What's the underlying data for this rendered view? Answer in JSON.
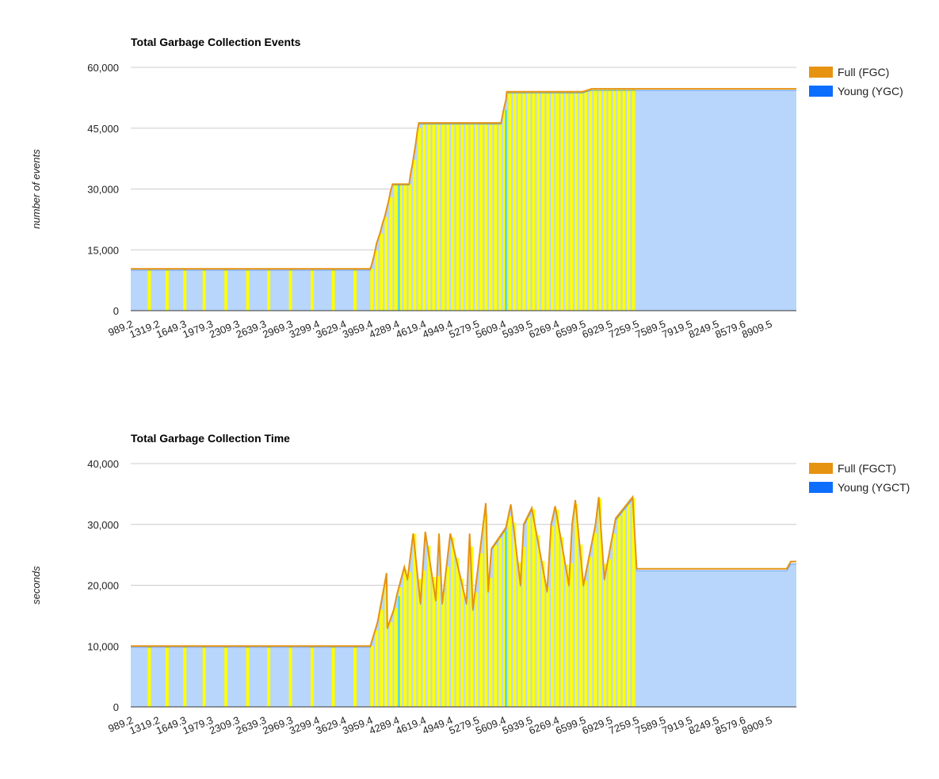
{
  "chart_data": [
    {
      "type": "area",
      "title": "Total Garbage Collection Events",
      "ylabel": "number of events",
      "xlabel": "",
      "ylim": [
        0,
        60000
      ],
      "yticks": [
        "0",
        "15,000",
        "30,000",
        "45,000",
        "60,000"
      ],
      "ytick_values": [
        0,
        15000,
        30000,
        45000,
        60000
      ],
      "xticks": [
        "989.2",
        "1319.2",
        "1649.3",
        "1979.3",
        "2309.3",
        "2639.3",
        "2969.3",
        "3299.4",
        "3629.4",
        "3959.4",
        "4289.4",
        "4619.4",
        "4949.4",
        "5279.5",
        "5609.4",
        "5939.5",
        "6269.4",
        "6599.5",
        "6929.5",
        "7259.5",
        "7589.5",
        "7919.5",
        "8249.5",
        "8579.6",
        "8909.5"
      ],
      "xlim": [
        989.2,
        9239.5
      ],
      "legend_position": "right",
      "grid": true,
      "colors": {
        "full": "#e69312",
        "young": "#0d6efd",
        "fill": "#b8d6fb",
        "highlight": "#ffff00",
        "cyan": "#33dddd"
      },
      "series": [
        {
          "name": "Full (FGC)",
          "x": [
            989.2,
            3959.4,
            3985,
            4010,
            4035,
            4060,
            4085,
            4110,
            4135,
            4160,
            4185,
            4210,
            4235,
            4260,
            4289.4,
            4400,
            4440,
            4460,
            4480,
            4500,
            4520,
            4540,
            4560,
            4580,
            5580,
            5610,
            5640,
            5650,
            5700,
            6590,
            6640,
            6700,
            6800,
            7259.5,
            9239.5
          ],
          "y": [
            10300,
            10300,
            12000,
            14000,
            16500,
            18000,
            19500,
            21500,
            23000,
            25000,
            27000,
            29500,
            31200,
            31200,
            31200,
            31200,
            31200,
            34000,
            36000,
            38500,
            41000,
            44000,
            46300,
            46300,
            46300,
            49500,
            52000,
            54000,
            54000,
            54000,
            54300,
            54700,
            54700,
            54700,
            54700
          ]
        },
        {
          "name": "Young (YGC)",
          "x": [
            989.2,
            3959.4,
            3985,
            4010,
            4035,
            4060,
            4085,
            4110,
            4135,
            4160,
            4185,
            4210,
            4235,
            4260,
            4289.4,
            4400,
            4440,
            4460,
            4480,
            4500,
            4520,
            4540,
            4560,
            4580,
            5580,
            5610,
            5640,
            5650,
            5700,
            6590,
            6640,
            6700,
            6800,
            7259.5,
            9239.5
          ],
          "y": [
            10000,
            10000,
            11800,
            13800,
            16300,
            17800,
            19300,
            21300,
            22800,
            24800,
            26800,
            29300,
            31000,
            31000,
            31000,
            31000,
            31000,
            33800,
            35800,
            38300,
            40800,
            43800,
            46000,
            46000,
            46000,
            49200,
            51700,
            53700,
            53700,
            53700,
            54000,
            54300,
            54300,
            54300,
            54300
          ]
        }
      ]
    },
    {
      "type": "area",
      "title": "Total Garbage Collection Time",
      "ylabel": "seconds",
      "xlabel": "",
      "ylim": [
        0,
        40000
      ],
      "yticks": [
        "0",
        "10,000",
        "20,000",
        "30,000",
        "40,000"
      ],
      "ytick_values": [
        0,
        10000,
        20000,
        30000,
        40000
      ],
      "xticks": [
        "989.2",
        "1319.2",
        "1649.3",
        "1979.3",
        "2309.3",
        "2639.3",
        "2969.3",
        "3299.4",
        "3629.4",
        "3959.4",
        "4289.4",
        "4619.4",
        "4949.4",
        "5279.5",
        "5609.4",
        "5939.5",
        "6269.4",
        "6599.5",
        "6929.5",
        "7259.5",
        "7589.5",
        "7919.5",
        "8249.5",
        "8579.6",
        "8909.5"
      ],
      "xlim": [
        989.2,
        9239.5
      ],
      "legend_position": "right",
      "grid": true,
      "colors": {
        "full": "#e69312",
        "young": "#0d6efd",
        "fill": "#b8d6fb",
        "highlight": "#ffff00",
        "cyan": "#33dddd"
      },
      "series": [
        {
          "name": "Full (FGCT)",
          "x": [
            989.2,
            3959.4,
            4050,
            4160,
            4170,
            4250,
            4289.4,
            4380,
            4420,
            4490,
            4580,
            4640,
            4770,
            4810,
            4850,
            4950,
            5150,
            5190,
            5230,
            5390,
            5420,
            5460,
            5640,
            5700,
            5820,
            5860,
            5960,
            6150,
            6200,
            6250,
            6420,
            6460,
            6500,
            6600,
            6750,
            6790,
            6860,
            7000,
            7210,
            7260,
            7259.5,
            9120,
            9170,
            9239.5
          ],
          "y": [
            10000,
            10000,
            14000,
            22000,
            13000,
            16000,
            18500,
            23000,
            21000,
            28500,
            17000,
            28800,
            17500,
            28500,
            17000,
            28500,
            17000,
            28500,
            16000,
            33500,
            19000,
            26000,
            29500,
            33300,
            20000,
            30000,
            32700,
            19000,
            30000,
            33000,
            20000,
            30000,
            34000,
            20000,
            30000,
            34500,
            21000,
            31000,
            34500,
            22700,
            22700,
            22700,
            23900,
            23900
          ]
        },
        {
          "name": "Young (YGCT)",
          "x": [
            989.2,
            3959.4,
            4050,
            4160,
            4170,
            4250,
            4289.4,
            4380,
            4420,
            4490,
            4580,
            4640,
            4770,
            4810,
            4850,
            4950,
            5150,
            5190,
            5230,
            5390,
            5420,
            5460,
            5640,
            5700,
            5820,
            5860,
            5960,
            6150,
            6200,
            6250,
            6420,
            6460,
            6500,
            6600,
            6750,
            6790,
            6860,
            7000,
            7210,
            7260,
            7259.5,
            9120,
            9170,
            9239.5
          ],
          "y": [
            9800,
            9800,
            13800,
            21500,
            12800,
            15800,
            18300,
            22700,
            20800,
            28200,
            16800,
            28500,
            17300,
            28200,
            16800,
            28200,
            16800,
            28200,
            15800,
            33200,
            18800,
            25800,
            29200,
            33000,
            19800,
            29700,
            32400,
            18800,
            29700,
            32700,
            19800,
            29700,
            33700,
            19800,
            29700,
            34200,
            20800,
            30700,
            34200,
            22400,
            22400,
            22400,
            23500,
            23500
          ]
        }
      ]
    }
  ]
}
